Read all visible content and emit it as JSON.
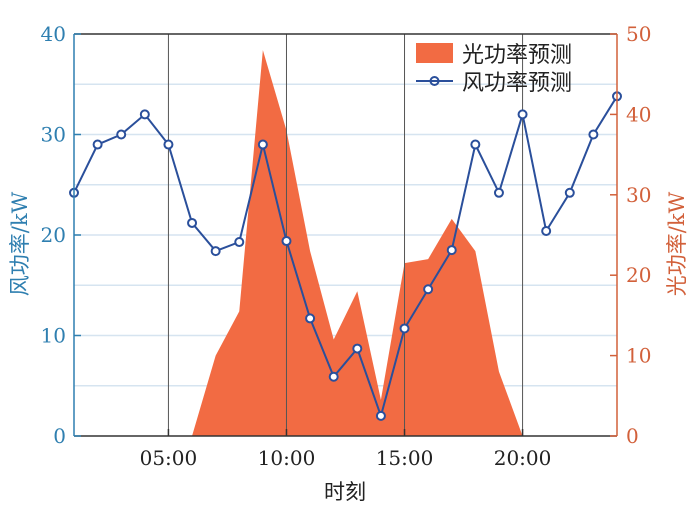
{
  "chart_data": {
    "type": "line",
    "xlabel": "时刻",
    "ylabel_left": "风功率/kW",
    "ylabel_right": "光功率/kW",
    "xlim": [
      1,
      24
    ],
    "ylim_left": [
      0,
      40
    ],
    "ylim_right": [
      0,
      50
    ],
    "xticks": [
      5,
      10,
      15,
      20
    ],
    "xtick_labels": [
      "05:00",
      "10:00",
      "15:00",
      "20:00"
    ],
    "yticks_left": [
      0,
      10,
      20,
      30,
      40
    ],
    "yticks_right": [
      0,
      10,
      20,
      30,
      40,
      50
    ],
    "legend_position": "top-right",
    "series": [
      {
        "name": "光功率预测",
        "type": "area",
        "axis": "right",
        "color": "#f26b43",
        "x": [
          6,
          7,
          8,
          9,
          10,
          11,
          12,
          13,
          14,
          15,
          16,
          17,
          18,
          19,
          20
        ],
        "values": [
          0,
          10,
          15.5,
          48,
          38,
          23,
          12,
          18,
          4.5,
          21.5,
          22,
          27,
          23,
          8,
          0
        ]
      },
      {
        "name": "风功率预测",
        "type": "line",
        "axis": "left",
        "color": "#2a4f9b",
        "x": [
          1,
          2,
          3,
          4,
          5,
          6,
          7,
          8,
          9,
          10,
          11,
          12,
          13,
          14,
          15,
          16,
          17,
          18,
          19,
          20,
          21,
          22,
          23,
          24
        ],
        "values": [
          24.2,
          29,
          30,
          32,
          29,
          21.2,
          18.4,
          19.3,
          29,
          19.4,
          11.7,
          5.9,
          8.7,
          2,
          10.7,
          14.6,
          18.5,
          29,
          24.2,
          32,
          20.4,
          24.2,
          30,
          33.8
        ]
      }
    ],
    "colors": {
      "left_axis": "#2f7fb0",
      "right_axis": "#d2603a",
      "grid_horizontal": "#d6e4f0",
      "grid_vertical": "#555555"
    }
  }
}
